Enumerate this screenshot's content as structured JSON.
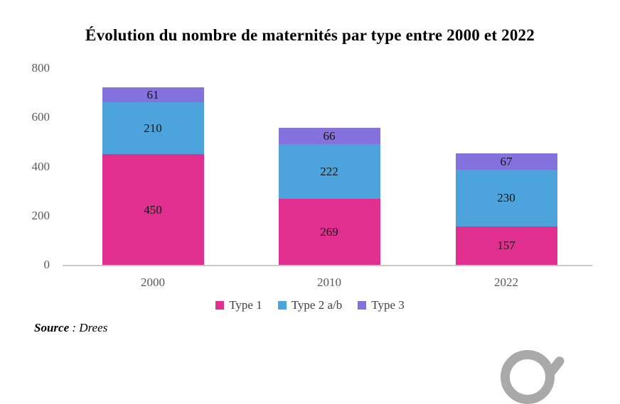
{
  "source": {
    "label": "Source",
    "text": " : Drees"
  },
  "watermark": {
    "letter": "e"
  },
  "colors": {
    "axis_text": "#595959",
    "legend_text": "#404040",
    "bar_label": "#141414",
    "axis_line": "#c9c9c9",
    "watermark": "#a9a9a9",
    "background": "#ffffff",
    "title_text": "#000000"
  },
  "chart_data": {
    "type": "bar",
    "stacked": true,
    "title": "Évolution du nombre de maternités par type entre 2000 et 2022",
    "categories": [
      "2000",
      "2010",
      "2022"
    ],
    "series": [
      {
        "name": "Type 1",
        "color": "#e02f8f",
        "values": [
          450,
          269,
          157
        ]
      },
      {
        "name": "Type 2 a/b",
        "color": "#4da3db",
        "values": [
          210,
          222,
          230
        ]
      },
      {
        "name": "Type 3",
        "color": "#8672df",
        "values": [
          61,
          66,
          67
        ]
      }
    ],
    "totals": [
      721,
      557,
      454
    ],
    "ylim": [
      0,
      800
    ],
    "yticks": [
      0,
      200,
      400,
      600,
      800
    ],
    "xlabel": "",
    "ylabel": "",
    "grid": false,
    "legend_position": "bottom",
    "data_labels": "inside-center"
  }
}
